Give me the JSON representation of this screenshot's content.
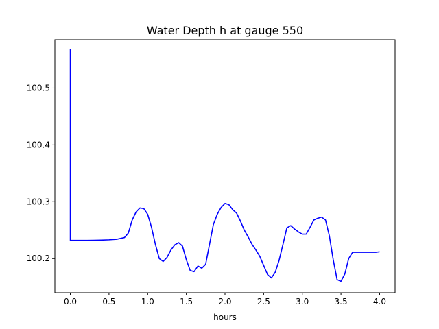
{
  "chart_data": {
    "type": "line",
    "title": "Water Depth h at gauge 550",
    "xlabel": "hours",
    "ylabel": "",
    "xlim": [
      -0.2,
      4.2
    ],
    "ylim": [
      100.14,
      100.585
    ],
    "xticks": [
      0.0,
      0.5,
      1.0,
      1.5,
      2.0,
      2.5,
      3.0,
      3.5,
      4.0
    ],
    "xtick_labels": [
      "0.0",
      "0.5",
      "1.0",
      "1.5",
      "2.0",
      "2.5",
      "3.0",
      "3.5",
      "4.0"
    ],
    "yticks": [
      100.2,
      100.3,
      100.4,
      100.5
    ],
    "ytick_labels": [
      "100.2",
      "100.3",
      "100.4",
      "100.5"
    ],
    "grid": false,
    "legend": "none",
    "series": [
      {
        "color": "#0000ff",
        "x": [
          0.0,
          0.0,
          0.0,
          0.1,
          0.2,
          0.3,
          0.4,
          0.5,
          0.6,
          0.7,
          0.75,
          0.8,
          0.85,
          0.9,
          0.95,
          1.0,
          1.05,
          1.1,
          1.15,
          1.2,
          1.25,
          1.3,
          1.35,
          1.4,
          1.45,
          1.5,
          1.55,
          1.6,
          1.65,
          1.7,
          1.75,
          1.8,
          1.85,
          1.9,
          1.95,
          2.0,
          2.05,
          2.1,
          2.15,
          2.2,
          2.25,
          2.3,
          2.35,
          2.4,
          2.45,
          2.5,
          2.55,
          2.6,
          2.65,
          2.7,
          2.75,
          2.8,
          2.85,
          2.9,
          2.95,
          3.0,
          3.05,
          3.1,
          3.15,
          3.2,
          3.25,
          3.3,
          3.35,
          3.4,
          3.45,
          3.5,
          3.55,
          3.6,
          3.65,
          3.7,
          3.75,
          3.8,
          3.85,
          3.9,
          3.95,
          4.0
        ],
        "y": [
          100.569,
          100.569,
          100.232,
          100.232,
          100.232,
          100.2322,
          100.2325,
          100.233,
          100.234,
          100.237,
          100.245,
          100.268,
          100.282,
          100.289,
          100.288,
          100.278,
          100.255,
          100.225,
          100.2,
          100.195,
          100.202,
          100.215,
          100.224,
          100.228,
          100.222,
          100.198,
          100.179,
          100.177,
          100.187,
          100.183,
          100.19,
          100.225,
          100.26,
          100.278,
          100.29,
          100.297,
          100.295,
          100.286,
          100.28,
          100.266,
          100.25,
          100.238,
          100.225,
          100.215,
          100.204,
          100.188,
          100.172,
          100.166,
          100.176,
          100.197,
          100.225,
          100.254,
          100.258,
          100.252,
          100.247,
          100.243,
          100.243,
          100.255,
          100.268,
          100.271,
          100.273,
          100.268,
          100.24,
          100.198,
          100.163,
          100.16,
          100.173,
          100.2,
          100.211,
          100.211,
          100.211,
          100.211,
          100.211,
          100.211,
          100.211,
          100.212
        ]
      }
    ]
  }
}
